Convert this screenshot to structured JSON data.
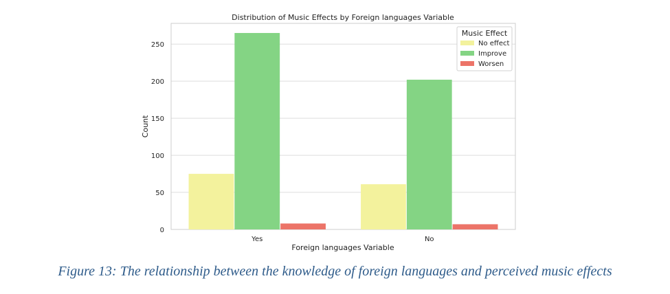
{
  "chart_data": {
    "type": "bar",
    "title": "Distribution of Music Effects by Foreign languages Variable",
    "xlabel": "Foreign languages Variable",
    "ylabel": "Count",
    "categories": [
      "Yes",
      "No"
    ],
    "series": [
      {
        "name": "No effect",
        "values": [
          75,
          61
        ],
        "color": "#f3f29d"
      },
      {
        "name": "Improve",
        "values": [
          265,
          202
        ],
        "color": "#84d484"
      },
      {
        "name": "Worsen",
        "values": [
          8,
          7
        ],
        "color": "#ec7468"
      }
    ],
    "ylim": [
      0,
      278
    ],
    "yticks": [
      0,
      50,
      100,
      150,
      200,
      250
    ],
    "grid": true,
    "legend": {
      "title": "Music Effect",
      "placement": "top-right"
    }
  },
  "caption": "Figure 13: The relationship between the knowledge of foreign languages and perceived music effects"
}
